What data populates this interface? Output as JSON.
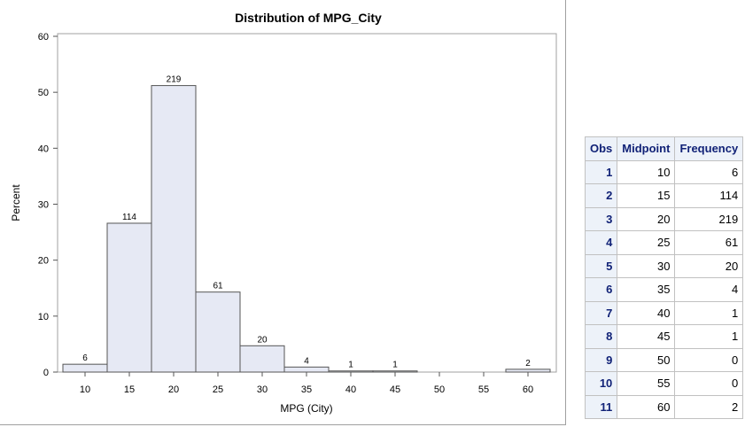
{
  "chart_data": {
    "type": "bar",
    "title": "Distribution of MPG_City",
    "xlabel": "MPG (City)",
    "ylabel": "Percent",
    "categories": [
      10,
      15,
      20,
      25,
      30,
      35,
      40,
      45,
      50,
      55,
      60
    ],
    "counts": [
      6,
      114,
      219,
      61,
      20,
      4,
      1,
      1,
      0,
      0,
      2
    ],
    "values": [
      1.4,
      26.6,
      51.2,
      14.3,
      4.7,
      0.9,
      0.2,
      0.2,
      0,
      0,
      0.5
    ],
    "data_labels": [
      "6",
      "114",
      "219",
      "61",
      "20",
      "4",
      "1",
      "1",
      "",
      "",
      "2"
    ],
    "ylim": [
      0,
      60
    ],
    "yticks": [
      0,
      10,
      20,
      30,
      40,
      50,
      60
    ],
    "xticks": [
      10,
      15,
      20,
      25,
      30,
      35,
      40,
      45,
      50,
      55,
      60
    ],
    "bar_fill": "#e6e9f4",
    "bar_stroke": "#555555",
    "grid": false
  },
  "table": {
    "headers": [
      "Obs",
      "Midpoint",
      "Frequency"
    ],
    "rows": [
      [
        "1",
        "10",
        "6"
      ],
      [
        "2",
        "15",
        "114"
      ],
      [
        "3",
        "20",
        "219"
      ],
      [
        "4",
        "25",
        "61"
      ],
      [
        "5",
        "30",
        "20"
      ],
      [
        "6",
        "35",
        "4"
      ],
      [
        "7",
        "40",
        "1"
      ],
      [
        "8",
        "45",
        "1"
      ],
      [
        "9",
        "50",
        "0"
      ],
      [
        "10",
        "55",
        "0"
      ],
      [
        "11",
        "60",
        "2"
      ]
    ]
  }
}
